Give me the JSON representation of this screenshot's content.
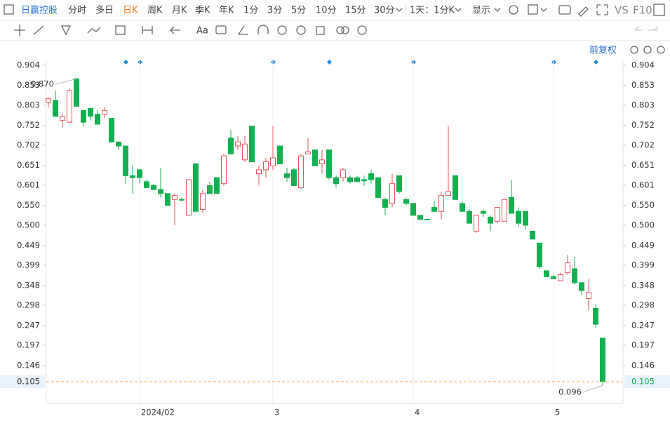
{
  "toolbar": {
    "stock": "日赢控股",
    "periods": [
      "分时",
      "多日",
      "日K",
      "周K",
      "月K",
      "季K",
      "年K",
      "1分",
      "3分",
      "5分",
      "10分",
      "15分",
      "30分"
    ],
    "interval": "1天：1分K",
    "display": "显示",
    "vs": "VS",
    "f10": "F10",
    "font": "Aa",
    "adjust": "前复权"
  },
  "chart_data": {
    "type": "candlestick",
    "categories": [
      null,
      null,
      null,
      null,
      null,
      null,
      null,
      null,
      null,
      null,
      null,
      null,
      null,
      "2024/02",
      null,
      null,
      null,
      null,
      null,
      null,
      null,
      null,
      null,
      null,
      null,
      null,
      null,
      null,
      null,
      null,
      null,
      null,
      "3",
      null,
      null,
      null,
      null,
      null,
      null,
      null,
      null,
      null,
      null,
      null,
      null,
      null,
      null,
      null,
      null,
      null,
      null,
      null,
      "4",
      null,
      null,
      null,
      null,
      null,
      null,
      null,
      null,
      null,
      null,
      null,
      null,
      null,
      null,
      null,
      null,
      null,
      null,
      null,
      "5",
      null,
      null,
      null,
      null,
      null,
      null,
      null
    ],
    "open": [
      0.81,
      0.815,
      0.765,
      0.76,
      0.87,
      0.79,
      0.795,
      0.78,
      0.78,
      0.77,
      0.71,
      0.7,
      0.625,
      0.64,
      0.61,
      0.6,
      0.59,
      0.58,
      0.565,
      0.565,
      0.525,
      0.655,
      0.54,
      0.6,
      0.62,
      0.605,
      0.72,
      0.7,
      0.665,
      0.75,
      0.63,
      0.64,
      0.65,
      0.7,
      0.63,
      0.64,
      0.595,
      0.68,
      0.69,
      0.655,
      0.69,
      0.62,
      0.62,
      0.62,
      0.62,
      0.615,
      0.63,
      0.62,
      0.565,
      0.555,
      0.625,
      0.565,
      0.555,
      0.525,
      0.515,
      0.545,
      0.535,
      0.575,
      0.625,
      0.555,
      0.535,
      0.485,
      0.535,
      0.52,
      0.51,
      0.51,
      0.57,
      0.535,
      0.535,
      0.485,
      0.455,
      0.385,
      0.37,
      0.36,
      0.38,
      0.39,
      0.355,
      0.315,
      0.29,
      0.215
    ],
    "high": [
      0.822,
      0.84,
      0.78,
      0.845,
      0.87,
      0.79,
      0.795,
      0.79,
      0.798,
      0.77,
      0.712,
      0.7,
      0.65,
      0.64,
      0.615,
      0.605,
      0.645,
      0.58,
      0.58,
      0.57,
      0.615,
      0.655,
      0.59,
      0.61,
      0.62,
      0.68,
      0.74,
      0.725,
      0.725,
      0.75,
      0.65,
      0.67,
      0.75,
      0.7,
      0.645,
      0.645,
      0.68,
      0.72,
      0.69,
      0.69,
      0.69,
      0.625,
      0.645,
      0.625,
      0.625,
      0.625,
      0.64,
      0.62,
      0.57,
      0.63,
      0.625,
      0.57,
      0.555,
      0.525,
      0.515,
      0.56,
      0.585,
      0.75,
      0.625,
      0.56,
      0.54,
      0.525,
      0.54,
      0.525,
      0.545,
      0.565,
      0.615,
      0.545,
      0.535,
      0.485,
      0.455,
      0.385,
      0.375,
      0.38,
      0.425,
      0.42,
      0.355,
      0.365,
      0.3,
      0.215
    ],
    "low": [
      0.797,
      0.775,
      0.745,
      0.76,
      0.8,
      0.75,
      0.765,
      0.755,
      0.77,
      0.71,
      0.69,
      0.605,
      0.58,
      0.605,
      0.595,
      0.59,
      0.57,
      0.55,
      0.5,
      0.56,
      0.525,
      0.535,
      0.53,
      0.58,
      0.58,
      0.6,
      0.68,
      0.69,
      0.66,
      0.66,
      0.6,
      0.62,
      0.64,
      0.655,
      0.61,
      0.6,
      0.59,
      0.68,
      0.65,
      0.63,
      0.615,
      0.595,
      0.61,
      0.605,
      0.61,
      0.6,
      0.605,
      0.57,
      0.525,
      0.545,
      0.58,
      0.55,
      0.525,
      0.515,
      0.515,
      0.535,
      0.515,
      0.575,
      0.565,
      0.535,
      0.505,
      0.48,
      0.52,
      0.485,
      0.505,
      0.51,
      0.53,
      0.495,
      0.49,
      0.465,
      0.39,
      0.37,
      0.365,
      0.36,
      0.375,
      0.35,
      0.325,
      0.285,
      0.24,
      0.096
    ],
    "close": [
      0.82,
      0.775,
      0.775,
      0.84,
      0.8,
      0.76,
      0.775,
      0.755,
      0.79,
      0.71,
      0.7,
      0.625,
      0.62,
      0.62,
      0.595,
      0.59,
      0.58,
      0.55,
      0.575,
      0.565,
      0.615,
      0.535,
      0.58,
      0.58,
      0.58,
      0.675,
      0.68,
      0.71,
      0.705,
      0.66,
      0.64,
      0.66,
      0.67,
      0.655,
      0.62,
      0.6,
      0.675,
      0.685,
      0.65,
      0.665,
      0.62,
      0.605,
      0.64,
      0.61,
      0.61,
      0.612,
      0.615,
      0.57,
      0.545,
      0.605,
      0.585,
      0.555,
      0.525,
      0.515,
      0.515,
      0.535,
      0.575,
      0.585,
      0.565,
      0.535,
      0.505,
      0.525,
      0.53,
      0.505,
      0.545,
      0.565,
      0.53,
      0.505,
      0.5,
      0.465,
      0.395,
      0.37,
      0.365,
      0.375,
      0.405,
      0.355,
      0.335,
      0.33,
      0.25,
      0.105
    ],
    "up_color": "#e8535a",
    "down_color": "#12b04f",
    "ylim": [
      0.05,
      0.918
    ],
    "yticks": [
      0.904,
      0.853,
      0.803,
      0.752,
      0.702,
      0.651,
      0.601,
      {
        "value": 0.55,
        "label": "0.550"
      },
      {
        "value": 0.5,
        "label": "0.500"
      },
      0.449,
      0.399,
      0.348,
      0.298,
      0.247,
      0.197,
      0.146
    ],
    "last_price": 0.105,
    "high_mark": {
      "value": 0.87,
      "label": "0.870"
    },
    "low_mark": 0.096
  }
}
